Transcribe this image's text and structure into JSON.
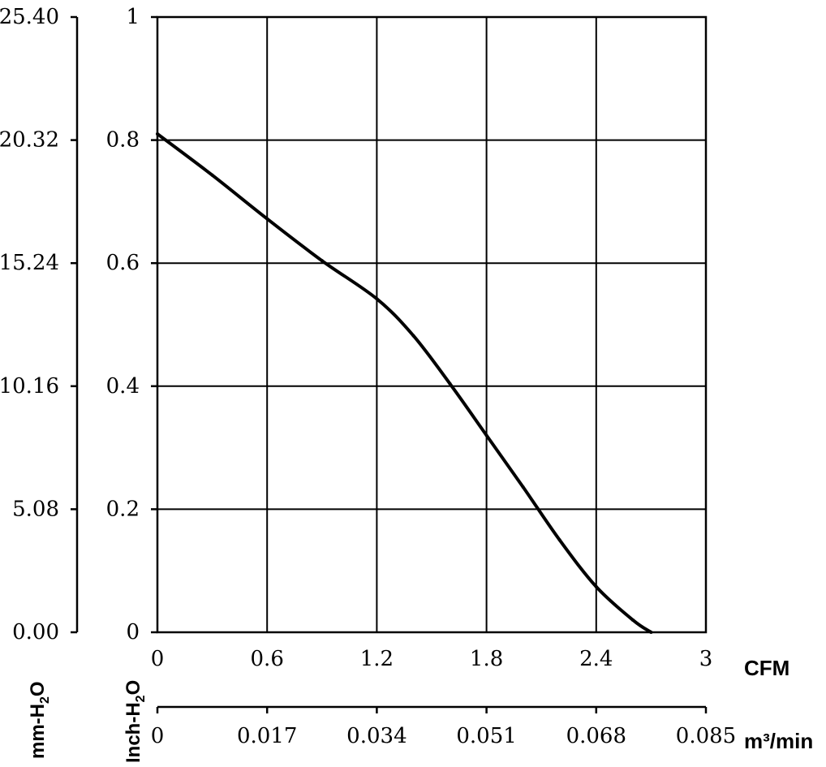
{
  "chart_data": {
    "type": "line",
    "title": "",
    "series": [
      {
        "x": [
          0,
          0.3,
          0.6,
          0.9,
          1.2,
          1.4,
          1.6,
          1.8,
          2.0,
          2.2,
          2.4,
          2.6,
          2.7
        ],
        "y": [
          0.81,
          0.743,
          0.672,
          0.604,
          0.542,
          0.482,
          0.404,
          0.32,
          0.236,
          0.15,
          0.074,
          0.02,
          0.0
        ]
      }
    ],
    "xlim": [
      0,
      3
    ],
    "ylim": [
      0,
      1
    ],
    "grid": true,
    "x_axis_primary": {
      "unit": "CFM",
      "ticks": [
        "0",
        "0.6",
        "1.2",
        "1.8",
        "2.4",
        "3"
      ]
    },
    "x_axis_secondary": {
      "unit": "m³/min",
      "ticks": [
        "0",
        "0.017",
        "0.034",
        "0.051",
        "0.068",
        "0.085"
      ]
    },
    "y_axis_primary": {
      "label_main": "Inch-H",
      "label_sub": "2",
      "label_end": "O",
      "ticks": [
        "0",
        "0.2",
        "0.4",
        "0.6",
        "0.8",
        "1"
      ]
    },
    "y_axis_secondary": {
      "label_main": "mm-H",
      "label_sub": "2",
      "label_end": "O",
      "ticks": [
        "0.00",
        "5.08",
        "10.16",
        "15.24",
        "20.32",
        "25.40"
      ]
    }
  }
}
